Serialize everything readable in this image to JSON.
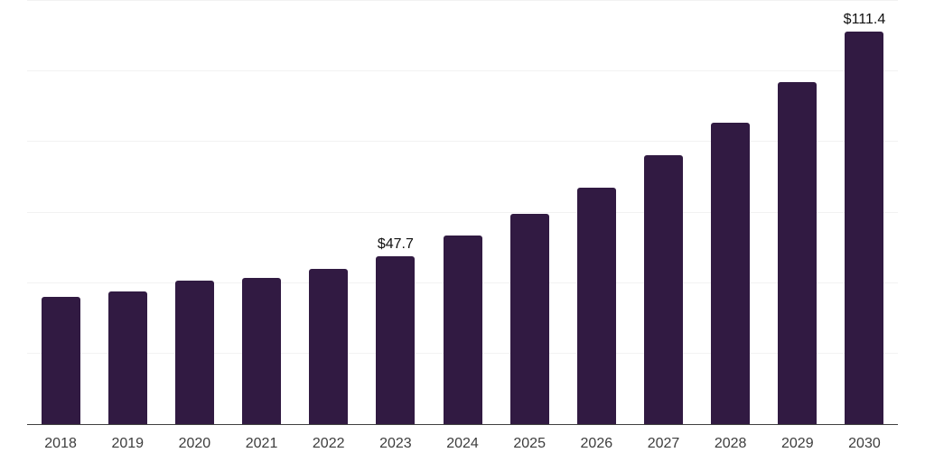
{
  "chart_data": {
    "type": "bar",
    "title": "",
    "xlabel": "",
    "ylabel": "",
    "categories": [
      "2018",
      "2019",
      "2020",
      "2021",
      "2022",
      "2023",
      "2024",
      "2025",
      "2026",
      "2027",
      "2028",
      "2029",
      "2030"
    ],
    "values": [
      36.0,
      37.7,
      40.6,
      41.4,
      44.0,
      47.7,
      53.6,
      59.7,
      67.0,
      76.3,
      85.4,
      96.9,
      111.4
    ],
    "value_labels": {
      "2023": "$47.7",
      "2030": "$111.4"
    },
    "ylim": [
      0,
      120
    ],
    "gridline_step": 20,
    "grid": "horizontal",
    "legend": "none",
    "y_axis_tick_labels_visible": false,
    "colors": {
      "bar": "#311a42",
      "gridline": "#f2f2f2",
      "axis_line": "#404040",
      "tick_label": "#3d3d3d",
      "value_label": "#111111",
      "background": "#ffffff"
    }
  }
}
